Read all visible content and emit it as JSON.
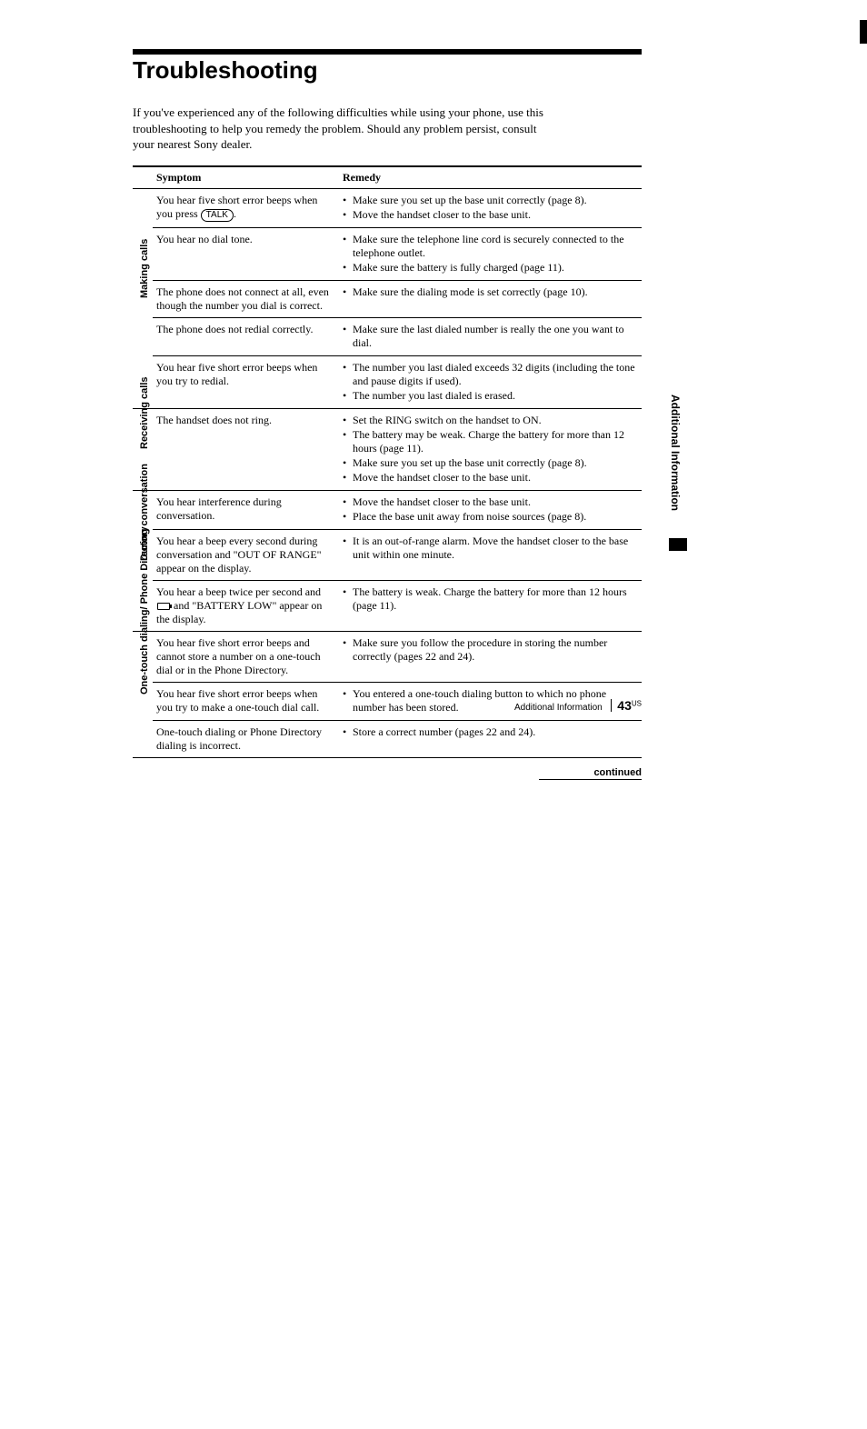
{
  "colors": {
    "page_bg": "#ffffff",
    "text": "#000000",
    "rule": "#000000"
  },
  "heading": "Troubleshooting",
  "intro": "If you've experienced any of the following difficulties while using your phone, use this troubleshooting to help you remedy the problem. Should any problem persist, consult your nearest Sony dealer.",
  "table": {
    "headers": {
      "symptom": "Symptom",
      "remedy": "Remedy"
    },
    "groups": [
      {
        "label": "Making calls",
        "rows": [
          {
            "symptom_pre": "You hear five short error beeps when you press ",
            "symptom_btn": "TALK",
            "symptom_post": ".",
            "remedies": [
              "Make sure you set up the base unit correctly (page 8).",
              "Move the handset closer to the base unit."
            ]
          },
          {
            "symptom": "You hear no dial tone.",
            "remedies": [
              "Make sure the telephone line cord is securely connected to the telephone outlet.",
              "Make sure the battery is fully charged (page 11)."
            ]
          },
          {
            "symptom": "The phone does not connect at all, even though the number you dial is correct.",
            "remedies": [
              "Make sure the dialing mode is set correctly (page 10)."
            ]
          },
          {
            "symptom": "The phone does not redial correctly.",
            "remedies": [
              "Make sure the last dialed number is really the one you want to dial."
            ]
          },
          {
            "symptom": "You hear five short error beeps when you try to redial.",
            "remedies": [
              "The number you last dialed exceeds 32 digits (including the tone and pause digits if used).",
              "The number you last dialed is erased."
            ]
          }
        ]
      },
      {
        "label": "Receiving calls",
        "rows": [
          {
            "symptom": "The handset does not ring.",
            "remedies": [
              "Set the RING switch on the handset to ON.",
              "The battery may be weak. Charge the battery for more than 12 hours (page 11).",
              "Make sure you set up the base unit correctly (page 8).",
              "Move the handset closer to the base unit."
            ]
          }
        ]
      },
      {
        "label": "During conversation",
        "rows": [
          {
            "symptom": "You hear interference during conversation.",
            "remedies": [
              "Move the handset closer to the base unit.",
              "Place the base unit away from noise sources (page 8)."
            ]
          },
          {
            "symptom": "You hear a beep every second during conversation and \"OUT OF RANGE\" appear on the display.",
            "remedies": [
              "It is an out-of-range alarm. Move the handset closer to the base unit within one minute."
            ]
          },
          {
            "symptom_pre": "You hear a beep twice per second and ",
            "symptom_icon": "battery",
            "symptom_post": " and \"BATTERY LOW\" appear on the display.",
            "remedies": [
              "The battery is weak. Charge the battery for more than 12 hours (page 11)."
            ]
          }
        ]
      },
      {
        "label": "One-touch dialing/ Phone Directory",
        "rows": [
          {
            "symptom": "You hear five short error beeps and cannot store a number on a one-touch dial or in the Phone Directory.",
            "remedies": [
              "Make sure you follow the procedure in storing the number correctly (pages 22 and 24)."
            ]
          },
          {
            "symptom": "You hear five short error beeps when you try to make a one-touch dial call.",
            "remedies": [
              "You entered a one-touch dialing button to which no phone number has been stored."
            ]
          },
          {
            "symptom": "One-touch dialing or Phone Directory dialing is incorrect.",
            "remedies": [
              "Store a correct number (pages 22 and 24)."
            ]
          }
        ]
      }
    ]
  },
  "continued_label": "continued",
  "side_tab_label": "Additional Information",
  "footer": {
    "section": "Additional Information",
    "page_number": "43",
    "page_sup": "US"
  }
}
